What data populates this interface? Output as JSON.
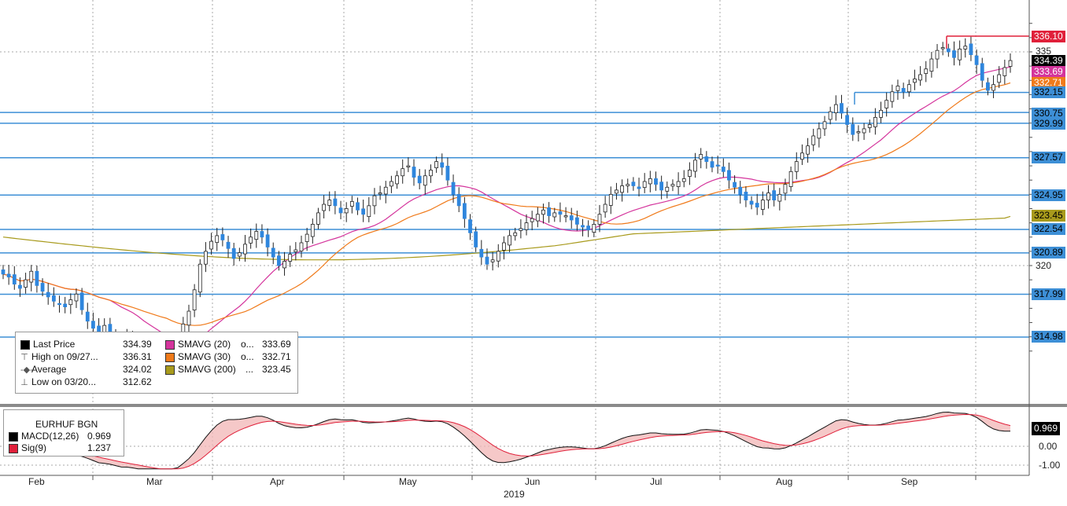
{
  "chart_data": [
    {
      "type": "candlestick",
      "ticker": "EURHUF BGN",
      "x_months": [
        "Feb",
        "Mar",
        "Apr",
        "May",
        "Jun",
        "Jul",
        "Aug",
        "Sep"
      ],
      "year": "2019",
      "ylim": [
        313,
        337.5
      ],
      "y_ticks": [
        "335",
        "320"
      ],
      "legend": [
        {
          "label": "Last Price",
          "value": "334.39",
          "color": "#000000",
          "icon": "square"
        },
        {
          "label": "High on 09/27...",
          "value": "336.31",
          "icon": "high-marker-icon"
        },
        {
          "label": "Average",
          "value": "324.02",
          "icon": "average-marker-icon"
        },
        {
          "label": "Low on 03/20...",
          "value": "312.62",
          "icon": "low-marker-icon"
        },
        {
          "label": "SMAVG (20)",
          "dots": "o...",
          "value": "333.69",
          "color": "#d4349c"
        },
        {
          "label": "SMAVG (30)",
          "dots": "o...",
          "value": "332.71",
          "color": "#f07a1a"
        },
        {
          "label": "SMAVG (200)",
          "dots": "...",
          "value": "323.45",
          "color": "#a89a1c"
        }
      ],
      "price_tags": [
        {
          "value": "336.10",
          "bg": "#e0203a",
          "fg": "#ffffff"
        },
        {
          "value": "334.39",
          "bg": "#000000",
          "fg": "#ffffff"
        },
        {
          "value": "333.69",
          "bg": "#d4349c",
          "fg": "#ffffff"
        },
        {
          "value": "332.71",
          "bg": "#f07a1a",
          "fg": "#ffffff"
        },
        {
          "value": "332.15",
          "bg": "#3d8fd6",
          "fg": "#000000"
        },
        {
          "value": "330.75",
          "bg": "#3d8fd6",
          "fg": "#000000"
        },
        {
          "value": "329.99",
          "bg": "#3d8fd6",
          "fg": "#000000"
        },
        {
          "value": "327.57",
          "bg": "#3d8fd6",
          "fg": "#000000"
        },
        {
          "value": "324.95",
          "bg": "#3d8fd6",
          "fg": "#000000"
        },
        {
          "value": "323.45",
          "bg": "#a89a1c",
          "fg": "#000000"
        },
        {
          "value": "322.54",
          "bg": "#3d8fd6",
          "fg": "#000000"
        },
        {
          "value": "320.89",
          "bg": "#3d8fd6",
          "fg": "#000000"
        },
        {
          "value": "317.99",
          "bg": "#3d8fd6",
          "fg": "#000000"
        },
        {
          "value": "314.98",
          "bg": "#3d8fd6",
          "fg": "#000000"
        }
      ],
      "horizontal_levels": [
        336.1,
        332.15,
        330.75,
        329.99,
        327.57,
        324.95,
        322.54,
        320.89,
        317.99,
        314.98
      ],
      "series_close": [
        319.4,
        319.2,
        318.7,
        318.4,
        319.0,
        319.6,
        318.6,
        318.2,
        317.8,
        317.5,
        317.3,
        317.1,
        317.6,
        318.0,
        316.9,
        316.1,
        315.6,
        315.1,
        315.8,
        315.3,
        314.8,
        314.4,
        314.9,
        314.3,
        313.8,
        313.2,
        313.5,
        313.0,
        312.8,
        313.3,
        313.9,
        314.6,
        315.9,
        316.8,
        318.3,
        320.1,
        321.0,
        321.7,
        322.1,
        321.8,
        321.2,
        320.5,
        320.9,
        321.5,
        322.0,
        322.4,
        322.0,
        321.3,
        320.6,
        320.0,
        320.3,
        320.8,
        321.1,
        321.6,
        322.2,
        322.9,
        323.7,
        324.3,
        324.6,
        324.2,
        323.7,
        324.0,
        324.5,
        323.9,
        323.6,
        324.2,
        324.9,
        325.1,
        325.5,
        325.9,
        326.3,
        326.8,
        327.0,
        326.2,
        325.8,
        326.3,
        326.7,
        327.3,
        326.9,
        326.0,
        325.0,
        324.2,
        323.3,
        322.3,
        321.3,
        320.6,
        320.1,
        320.4,
        321.0,
        321.6,
        322.1,
        322.3,
        322.6,
        323.0,
        323.3,
        323.6,
        323.9,
        323.5,
        323.7,
        323.6,
        323.5,
        323.2,
        322.9,
        322.7,
        322.5,
        322.9,
        323.6,
        324.3,
        325.0,
        325.3,
        325.6,
        325.7,
        325.6,
        325.4,
        325.9,
        326.1,
        325.7,
        325.3,
        325.5,
        325.7,
        325.9,
        326.1,
        326.7,
        327.4,
        327.8,
        327.3,
        326.9,
        327.0,
        326.6,
        326.0,
        325.5,
        325.0,
        324.6,
        324.3,
        324.1,
        324.6,
        325.1,
        324.6,
        325.0,
        325.7,
        326.6,
        327.3,
        327.9,
        328.4,
        329.1,
        329.6,
        330.1,
        330.8,
        331.3,
        330.7,
        329.9,
        329.2,
        329.4,
        329.6,
        329.9,
        330.4,
        330.9,
        331.6,
        332.2,
        332.6,
        332.2,
        332.7,
        333.1,
        333.4,
        333.8,
        334.5,
        335.1,
        335.3,
        335.0,
        334.6,
        335.2,
        335.4,
        334.8,
        334.1,
        333.0,
        332.3,
        332.7,
        333.4,
        333.9,
        334.39
      ],
      "sma20_final": 333.69,
      "sma30_final": 332.71,
      "sma200_final": 323.45
    },
    {
      "type": "line",
      "title": "EURHUF BGN",
      "series": [
        {
          "name": "MACD(12,26)",
          "value": "0.969",
          "color": "#000000"
        },
        {
          "name": "Sig(9)",
          "value": "1.237",
          "color": "#e0203a"
        }
      ],
      "y_ticks": [
        "0.00",
        "-1.00"
      ],
      "ylim": [
        -1.3,
        2.0
      ],
      "last_tag": {
        "value": "0.969",
        "bg": "#000000",
        "fg": "#ffffff"
      }
    }
  ]
}
